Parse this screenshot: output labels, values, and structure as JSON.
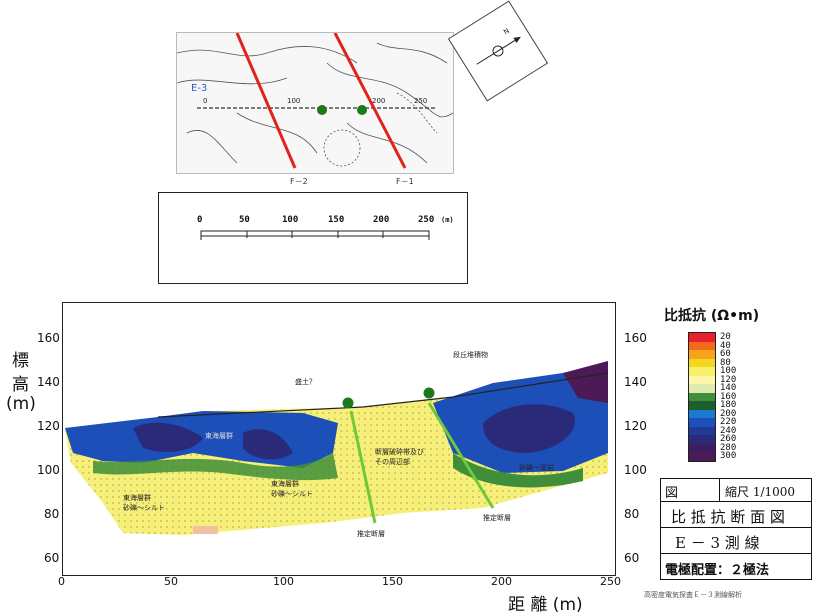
{
  "map": {
    "line_label": "E-3",
    "distance_ticks": [
      "0",
      "100",
      "200",
      "250"
    ],
    "fault_labels": [
      "F－2",
      "F－1"
    ],
    "compass_mark": "N"
  },
  "scale_bar": {
    "ticks": [
      "0",
      "50",
      "100",
      "150",
      "200",
      "250"
    ],
    "unit": "(m)"
  },
  "section": {
    "y_title_chars": [
      "標",
      "高",
      "(m)"
    ],
    "y_ticks": [
      "160",
      "140",
      "120",
      "100",
      "80",
      "60"
    ],
    "x_ticks": [
      "0",
      "50",
      "100",
      "150",
      "200",
      "250"
    ],
    "x_title": "距 離 (m)",
    "annotations": {
      "fill": "盛土？",
      "terrace": "段丘堆積物",
      "upper_layer": "東海層群",
      "sand_silt_1": "東海層群\n砂礫～シルト",
      "sand_silt_2": "東海層群\n砂礫～シルト",
      "fracture_zone": "断層破砕帯及び\nその周辺部",
      "sand_gravel": "砂礫～泥岩",
      "fault_1": "推定断層",
      "fault_2": "推定断層"
    }
  },
  "legend": {
    "title": "比抵抗 (Ω•m)",
    "values": [
      "20",
      "40",
      "60",
      "80",
      "100",
      "120",
      "140",
      "160",
      "180",
      "200",
      "220",
      "240",
      "260",
      "280",
      "300"
    ],
    "colors": [
      "#e8202a",
      "#f26a1e",
      "#f7a41c",
      "#f5d61f",
      "#f8f06a",
      "#fcf7a8",
      "#dfeab0",
      "#3f8e3a",
      "#1d5f2a",
      "#1a7ad0",
      "#1f4fb8",
      "#213a94",
      "#2a2a78",
      "#3d1d62",
      "#4c1a55"
    ]
  },
  "title_block": {
    "fig": "図",
    "scale": "縮尺 1/1000",
    "title": "比 抵 抗 断 面 図",
    "line": "E － 3 測 線",
    "method": "電極配置：２極法"
  },
  "caption": "高密度電気探査Ｅ－３測線解析"
}
